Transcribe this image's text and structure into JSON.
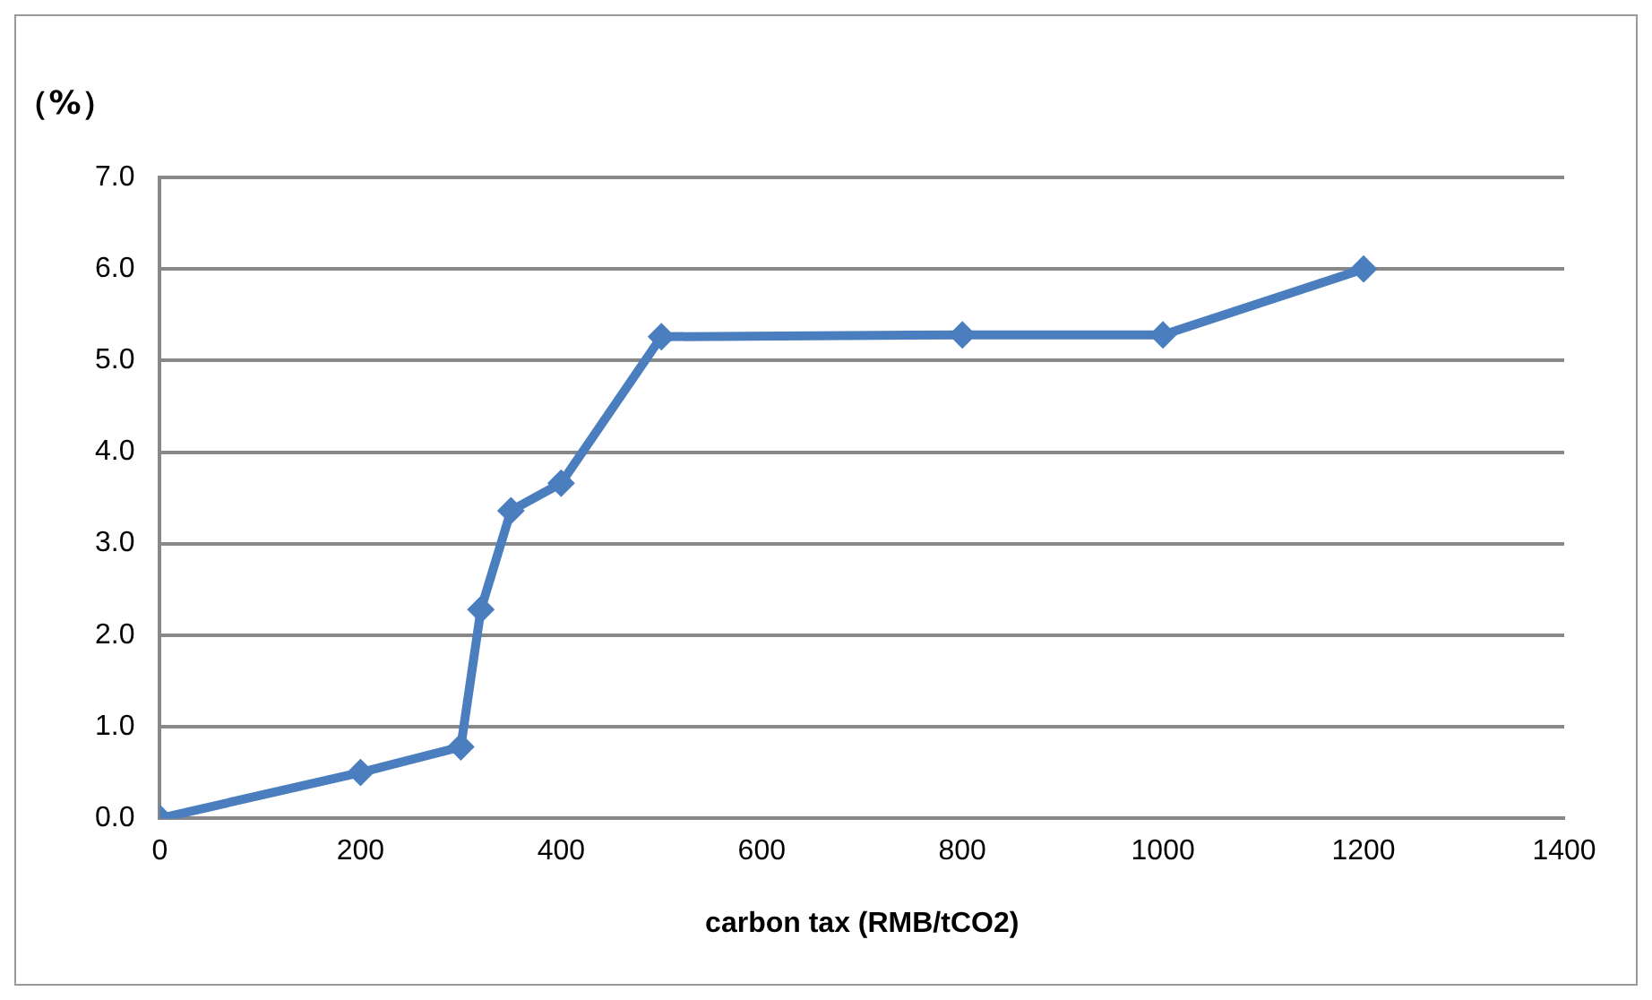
{
  "chart_data": {
    "type": "line",
    "ylabel": "（%）",
    "xlabel": "carbon tax (RMB/tCO2)",
    "x": [
      0,
      200,
      300,
      320,
      350,
      400,
      500,
      800,
      1000,
      1200
    ],
    "series": [
      {
        "color": "#4a7ebf",
        "values": [
          0.0,
          0.5,
          0.78,
          2.28,
          3.36,
          3.66,
          5.26,
          5.28,
          5.28,
          6.0
        ]
      }
    ],
    "xlim": [
      0,
      1400
    ],
    "xticks": [
      0,
      200,
      400,
      600,
      800,
      1000,
      1200,
      1400
    ],
    "ylim": [
      0,
      7
    ],
    "yticks": [
      {
        "value": 0,
        "label": "0.0"
      },
      {
        "value": 1,
        "label": "1.0"
      },
      {
        "value": 2,
        "label": "2.0"
      },
      {
        "value": 3,
        "label": "3.0"
      },
      {
        "value": 4,
        "label": "4.0"
      },
      {
        "value": 5,
        "label": "5.0"
      },
      {
        "value": 6,
        "label": "6.0"
      },
      {
        "value": 7,
        "label": "7.0"
      }
    ],
    "grid": "y",
    "legend": false,
    "marker": "diamond",
    "line_style": "solid"
  }
}
